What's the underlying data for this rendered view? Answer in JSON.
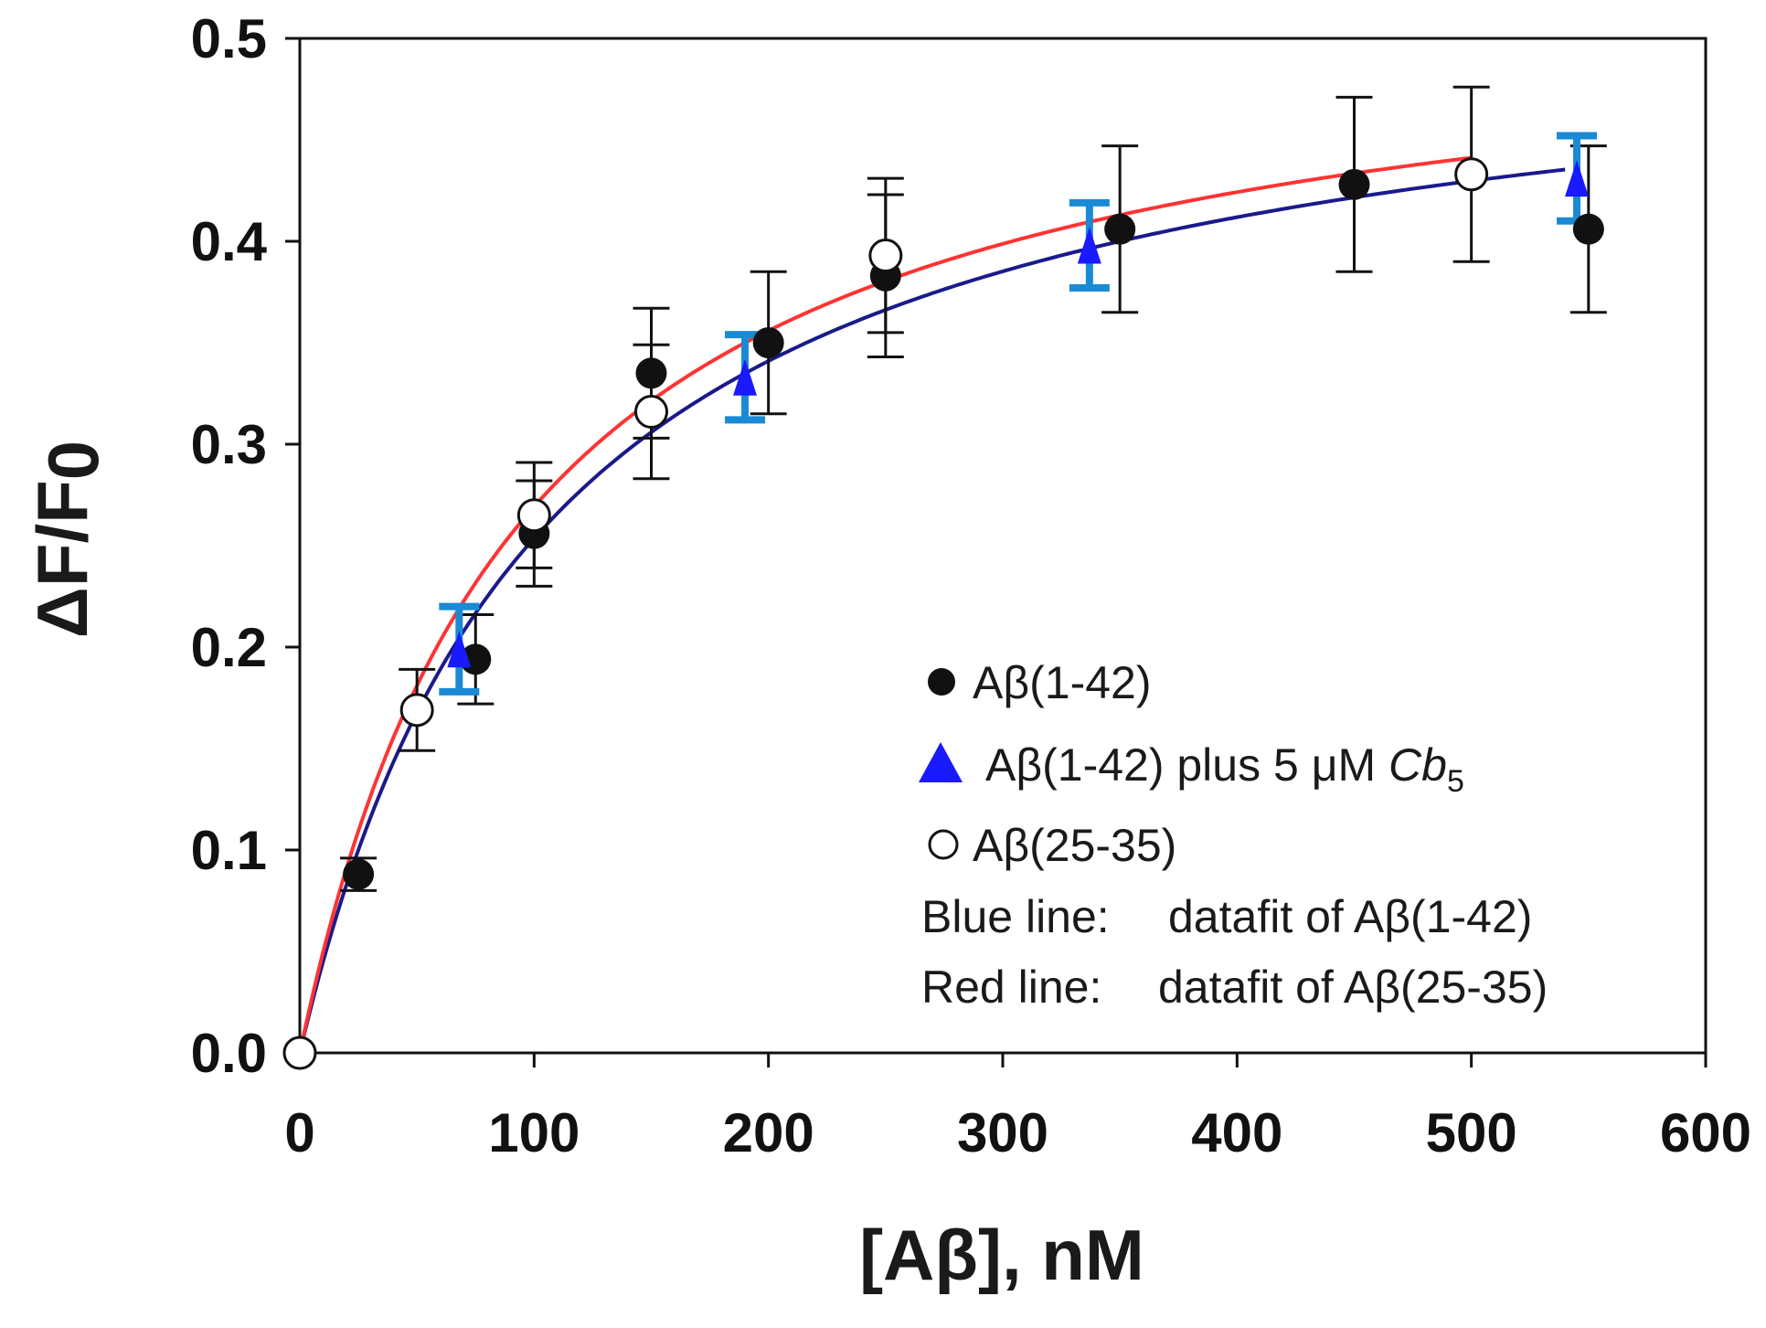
{
  "chart_data": {
    "type": "scatter",
    "xlabel": "[Aβ], nM",
    "ylabel": "ΔF/F0",
    "ylabel_main": "ΔF/F",
    "ylabel_sub": "0",
    "xlim": [
      0,
      600
    ],
    "ylim": [
      0,
      0.5
    ],
    "x_ticks": [
      0,
      100,
      200,
      300,
      400,
      500,
      600
    ],
    "x_tick_labels": [
      "0",
      "100",
      "200",
      "300",
      "400",
      "500",
      "600"
    ],
    "y_ticks": [
      0,
      0.1,
      0.2,
      0.3,
      0.4,
      0.5
    ],
    "y_tick_labels": [
      "0.0",
      "0.1",
      "0.2",
      "0.3",
      "0.4",
      "0.5"
    ],
    "grid": false,
    "legend_position": "bottom-right",
    "series": [
      {
        "name": "Aβ(1-42)",
        "marker": "filled-circle",
        "color": "#111111",
        "points": [
          {
            "x": 0,
            "y": 0.0,
            "err": 0.0
          },
          {
            "x": 25,
            "y": 0.088,
            "err": 0.008
          },
          {
            "x": 75,
            "y": 0.194,
            "err": 0.022
          },
          {
            "x": 100,
            "y": 0.256,
            "err": 0.026
          },
          {
            "x": 150,
            "y": 0.335,
            "err": 0.032
          },
          {
            "x": 200,
            "y": 0.35,
            "err": 0.035
          },
          {
            "x": 250,
            "y": 0.383,
            "err": 0.04
          },
          {
            "x": 350,
            "y": 0.406,
            "err": 0.041
          },
          {
            "x": 450,
            "y": 0.428,
            "err": 0.043
          },
          {
            "x": 550,
            "y": 0.406,
            "err": 0.041
          }
        ]
      },
      {
        "name": "Aβ(1-42) plus 5 μM Cb5",
        "marker": "filled-triangle",
        "color": "#1a1aff",
        "error_color": "#1a8ad4",
        "points": [
          {
            "x": 68,
            "y": 0.199,
            "err": 0.021
          },
          {
            "x": 190,
            "y": 0.333,
            "err": 0.021
          },
          {
            "x": 337,
            "y": 0.398,
            "err": 0.021
          },
          {
            "x": 545,
            "y": 0.431,
            "err": 0.021
          }
        ]
      },
      {
        "name": "Aβ(25-35)",
        "marker": "open-circle",
        "color": "#111111",
        "points": [
          {
            "x": 0,
            "y": 0.0,
            "err": 0.0
          },
          {
            "x": 50,
            "y": 0.169,
            "err": 0.02
          },
          {
            "x": 100,
            "y": 0.265,
            "err": 0.026
          },
          {
            "x": 150,
            "y": 0.316,
            "err": 0.033
          },
          {
            "x": 250,
            "y": 0.393,
            "err": 0.038
          },
          {
            "x": 500,
            "y": 0.433,
            "err": 0.043
          }
        ]
      }
    ],
    "fits": [
      {
        "name": "Blue line",
        "color": "#1a1a8c",
        "bmax": 0.52,
        "kd": 105,
        "x_max": 540
      },
      {
        "name": "Red line",
        "color": "#ff3333",
        "bmax": 0.525,
        "kd": 95,
        "x_max": 500
      }
    ],
    "legend": {
      "series_entries": [
        "Aβ(1-42)",
        "Aβ(1-42) plus 5 μM ",
        "Aβ(25-35)"
      ],
      "cb_italic": "Cb",
      "cb_subscript": "5",
      "blue_label": "Blue line:",
      "blue_desc": "datafit of Aβ(1-42)",
      "red_label": "Red line:",
      "red_desc": "datafit of Aβ(25-35)",
      "blue_color": "#1a1aff",
      "red_color": "#ff1a1a"
    }
  }
}
